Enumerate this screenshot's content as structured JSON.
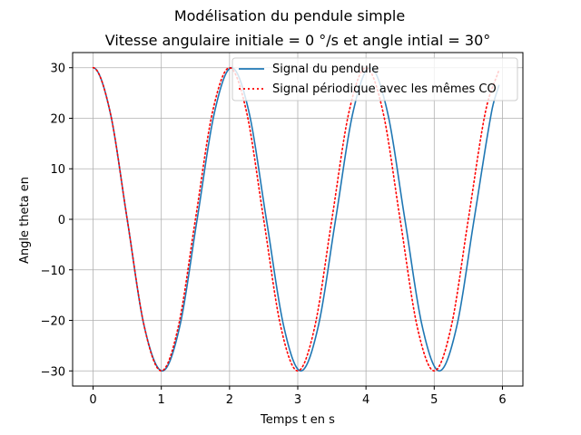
{
  "chart_data": {
    "type": "line",
    "suptitle": "Modélisation du pendule simple",
    "title": "Vitesse angulaire initiale = 0 °/s et angle intial = 30°",
    "xlabel": "Temps t en s",
    "ylabel": "Angle theta en",
    "xlim": [
      -0.3,
      6.3
    ],
    "ylim": [
      -33,
      33
    ],
    "xticks": [
      0,
      1,
      2,
      3,
      4,
      5,
      6
    ],
    "yticks": [
      -30,
      -20,
      -10,
      0,
      10,
      20,
      30
    ],
    "grid": true,
    "legend_placement": "upper-right",
    "series": [
      {
        "name": "Signal du pendule",
        "color": "#1f77b4",
        "style": "solid",
        "x": [
          0,
          0.25,
          0.5,
          0.75,
          1.015,
          1.27,
          1.525,
          1.78,
          2.03,
          2.285,
          2.54,
          2.795,
          3.045,
          3.3,
          3.555,
          3.81,
          4.06,
          4.315,
          4.57,
          4.825,
          5.075,
          5.33,
          5.585,
          5.84,
          5.95
        ],
        "y": [
          30,
          21.2,
          0,
          -21.2,
          -30,
          -21.2,
          0,
          21.2,
          30,
          21.2,
          0,
          -21.2,
          -30,
          -21.2,
          0,
          21.2,
          30,
          21.2,
          0,
          -21.2,
          -30,
          -21.2,
          0,
          21.2,
          26.6
        ]
      },
      {
        "name": "Signal périodique avec les mêmes CO",
        "color": "#ff0000",
        "style": "dotted",
        "x": [
          0,
          0.25,
          0.5,
          0.75,
          1.0,
          1.25,
          1.5,
          1.75,
          2.0,
          2.25,
          2.5,
          2.75,
          3.0,
          3.25,
          3.5,
          3.75,
          4.0,
          4.25,
          4.5,
          4.75,
          5.0,
          5.25,
          5.5,
          5.75,
          5.95
        ],
        "y": [
          30,
          21.2,
          0,
          -21.2,
          -30,
          -21.2,
          0,
          21.2,
          30,
          21.2,
          0,
          -21.2,
          -30,
          -21.2,
          0,
          21.2,
          30,
          21.2,
          0,
          -21.2,
          -30,
          -21.2,
          0,
          21.2,
          29.6
        ]
      }
    ]
  }
}
